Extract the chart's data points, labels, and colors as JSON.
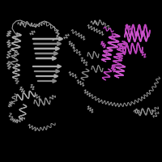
{
  "background_color": "#000000",
  "fig_width": 2.0,
  "fig_height": 2.0,
  "dpi": 100,
  "gray_color": "#888888",
  "dark_gray": "#555555",
  "light_gray": "#aaaaaa",
  "outline_color": "#999999",
  "magenta_color": "#bb44bb",
  "bright_magenta": "#cc55cc"
}
